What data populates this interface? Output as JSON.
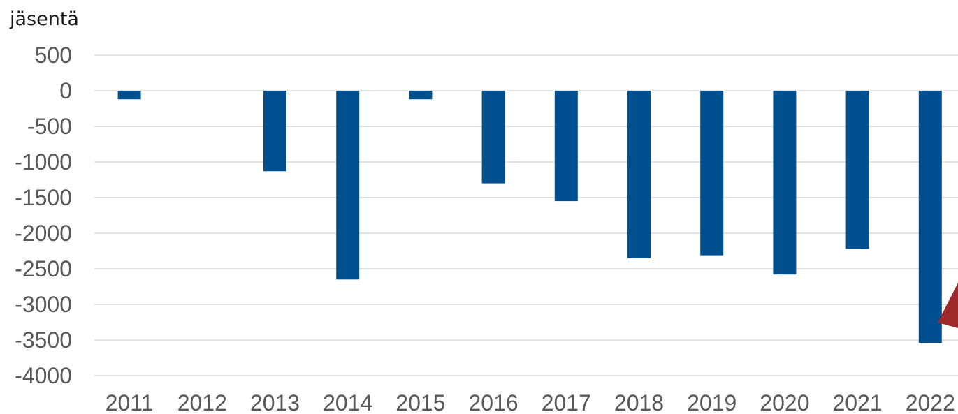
{
  "chart_data": {
    "type": "bar",
    "title": "",
    "unit_label": "jäsentä",
    "xlabel": "",
    "ylabel": "",
    "categories": [
      "2011",
      "2012",
      "2013",
      "2014",
      "2015",
      "2016",
      "2017",
      "2018",
      "2019",
      "2020",
      "2021",
      "2022"
    ],
    "values": [
      -120,
      0,
      -1130,
      -2650,
      -120,
      -1300,
      -1550,
      -2350,
      -2310,
      -2580,
      -2220,
      -3540
    ],
    "ylim": [
      -4000,
      500
    ],
    "yticks": [
      "500",
      "0",
      "-500",
      "-1000",
      "-1500",
      "-2000",
      "-2500",
      "-3000",
      "-3500",
      "-4000"
    ],
    "grid": true,
    "legend": "none",
    "bar_color": "#00508f",
    "annotation_color": "#9e2a2b"
  }
}
